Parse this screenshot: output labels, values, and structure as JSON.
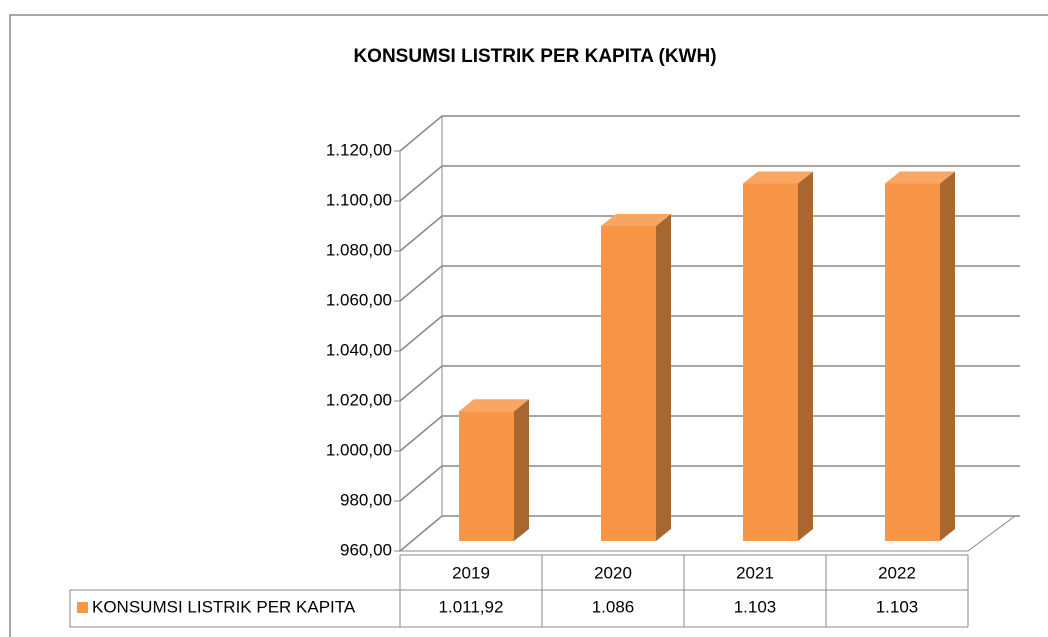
{
  "chart_data": {
    "type": "bar3d",
    "title": "KONSUMSI LISTRIK PER KAPITA (KWH)",
    "categories": [
      "2019",
      "2020",
      "2021",
      "2022"
    ],
    "series": [
      {
        "name": "KONSUMSI LISTRIK PER KAPITA",
        "color": "#F79646",
        "values": [
          1011.92,
          1086,
          1103,
          1103
        ],
        "value_labels": [
          "1.011,92",
          "1.086",
          "1.103",
          "1.103"
        ]
      }
    ],
    "ylim": [
      960,
      1120
    ],
    "yticks": [
      {
        "value": 960,
        "label": "960,00"
      },
      {
        "value": 980,
        "label": "980,00"
      },
      {
        "value": 1000,
        "label": "1.000,00"
      },
      {
        "value": 1020,
        "label": "1.020,00"
      },
      {
        "value": 1040,
        "label": "1.040,00"
      },
      {
        "value": 1060,
        "label": "1.060,00"
      },
      {
        "value": 1080,
        "label": "1.080,00"
      },
      {
        "value": 1100,
        "label": "1.100,00"
      },
      {
        "value": 1120,
        "label": "1.120,00"
      }
    ],
    "grid": true,
    "data_table": true
  }
}
